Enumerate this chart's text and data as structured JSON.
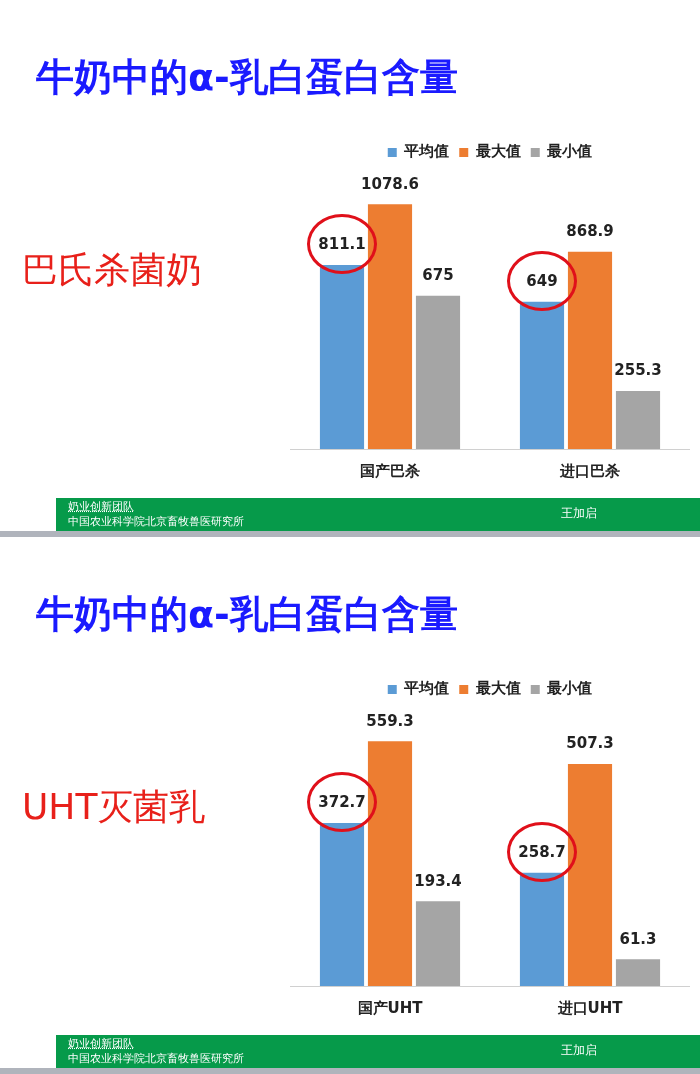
{
  "chart_data": [
    {
      "type": "bar",
      "title": "牛奶中的α-乳白蛋白含量",
      "subtitle": "巴氏杀菌奶",
      "categories": [
        "国产巴杀",
        "进口巴杀"
      ],
      "series": [
        {
          "name": "平均值",
          "color": "#5b9bd5",
          "values": [
            811.1,
            649
          ]
        },
        {
          "name": "最大值",
          "color": "#ed7d31",
          "values": [
            1078.6,
            868.9
          ]
        },
        {
          "name": "最小值",
          "color": "#a5a5a5",
          "values": [
            675,
            255.3
          ]
        }
      ],
      "data_labels": true,
      "legend": "top",
      "grid": false,
      "annotations": [
        "奶业创新团队",
        "中国农业科学院北京畜牧兽医研究所",
        "王加启"
      ]
    },
    {
      "type": "bar",
      "title": "牛奶中的α-乳白蛋白含量",
      "subtitle": "UHT灭菌乳",
      "categories": [
        "国产UHT",
        "进口UHT"
      ],
      "series": [
        {
          "name": "平均值",
          "color": "#5b9bd5",
          "values": [
            372.7,
            258.7
          ]
        },
        {
          "name": "最大值",
          "color": "#ed7d31",
          "values": [
            559.3,
            507.3
          ]
        },
        {
          "name": "最小值",
          "color": "#a5a5a5",
          "values": [
            193.4,
            61.3
          ]
        }
      ],
      "data_labels": true,
      "legend": "top",
      "grid": false,
      "annotations": [
        "奶业创新团队",
        "中国农业科学院北京畜牧兽医研究所",
        "王加启"
      ]
    }
  ]
}
